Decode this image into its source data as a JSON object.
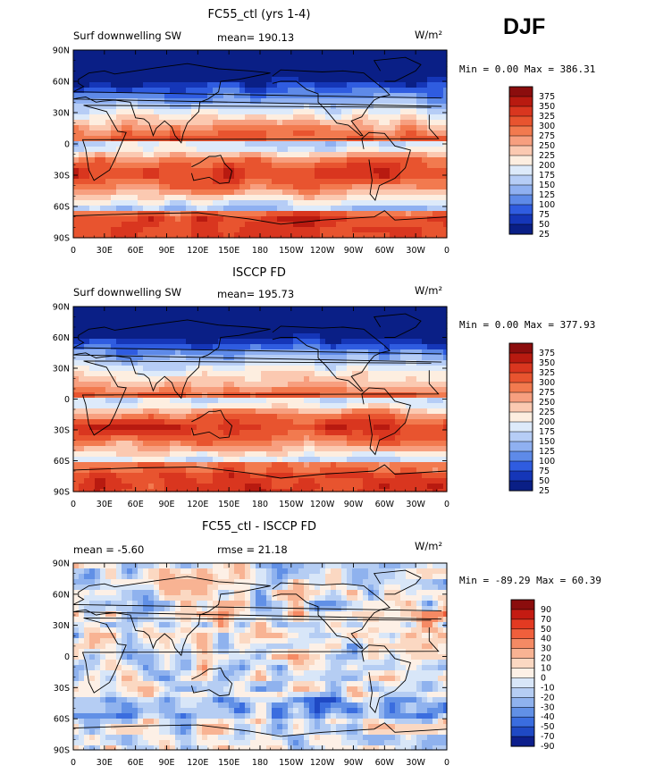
{
  "season_label": "DJF",
  "chart_data": [
    {
      "type": "heatmap",
      "title": "FC55_ctl (yrs 1-4)",
      "left_label": "Surf downwelling SW",
      "stat_label": "mean= 190.13",
      "units_label": "W/m²",
      "minmax_label": "Min =   0.00 Max = 386.31",
      "palette": "warm",
      "xlabels": [
        "0",
        "30E",
        "60E",
        "90E",
        "120E",
        "150E",
        "180",
        "150W",
        "120W",
        "90W",
        "60W",
        "30W",
        "0"
      ],
      "ylabels": [
        "90N",
        "60N",
        "30N",
        "0",
        "30S",
        "60S",
        "90S"
      ],
      "xlim": [
        0,
        360
      ],
      "ylim": [
        -90,
        90
      ],
      "colorbar": [
        "375",
        "350",
        "325",
        "300",
        "275",
        "250",
        "225",
        "200",
        "175",
        "150",
        "125",
        "100",
        "75",
        "50",
        "25"
      ]
    },
    {
      "type": "heatmap",
      "title": "ISCCP FD",
      "left_label": "Surf downwelling SW",
      "stat_label": "mean= 195.73",
      "units_label": "W/m²",
      "minmax_label": "Min =   0.00 Max = 377.93",
      "palette": "warm",
      "xlabels": [
        "0",
        "30E",
        "60E",
        "90E",
        "120E",
        "150E",
        "180",
        "150W",
        "120W",
        "90W",
        "60W",
        "30W",
        "0"
      ],
      "ylabels": [
        "90N",
        "60N",
        "30N",
        "0",
        "30S",
        "60S",
        "90S"
      ],
      "xlim": [
        0,
        360
      ],
      "ylim": [
        -90,
        90
      ],
      "colorbar": [
        "375",
        "350",
        "325",
        "300",
        "275",
        "250",
        "225",
        "200",
        "175",
        "150",
        "125",
        "100",
        "75",
        "50",
        "25"
      ]
    },
    {
      "type": "heatmap",
      "title": "FC55_ctl - ISCCP FD",
      "left_label": "mean =  -5.60",
      "stat_label": "rmse =  21.18",
      "units_label": "W/m²",
      "minmax_label": "Min = -89.29 Max =  60.39",
      "palette": "diff",
      "xlabels": [
        "0",
        "30E",
        "60E",
        "90E",
        "120E",
        "150E",
        "180",
        "150W",
        "120W",
        "90W",
        "60W",
        "30W",
        "0"
      ],
      "ylabels": [
        "90N",
        "60N",
        "30N",
        "0",
        "30S",
        "60S",
        "90S"
      ],
      "xlim": [
        0,
        360
      ],
      "ylim": [
        -90,
        90
      ],
      "colorbar": [
        "90",
        "70",
        "50",
        "40",
        "30",
        "20",
        "10",
        "0",
        "-10",
        "-20",
        "-30",
        "-40",
        "-50",
        "-70",
        "-90"
      ]
    }
  ]
}
